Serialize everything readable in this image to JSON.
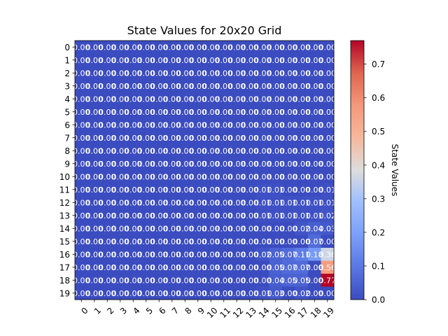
{
  "chart_data": {
    "type": "heatmap",
    "title": "State Values for 20x20 Grid",
    "colorbar_label": "State Values",
    "colormap": "coolwarm",
    "color_low": "#3b4cc0",
    "color_mid": "#dddddd",
    "color_high": "#b40426",
    "vmin": 0.0,
    "vmax": 0.77,
    "x_ticks": [
      "0",
      "1",
      "2",
      "3",
      "4",
      "5",
      "6",
      "7",
      "8",
      "9",
      "10",
      "11",
      "12",
      "13",
      "14",
      "15",
      "16",
      "17",
      "18",
      "19"
    ],
    "y_ticks": [
      "0",
      "1",
      "2",
      "3",
      "4",
      "5",
      "6",
      "7",
      "8",
      "9",
      "10",
      "11",
      "12",
      "13",
      "14",
      "15",
      "16",
      "17",
      "18",
      "19"
    ],
    "colorbar_ticks": [
      "0.0",
      "0.1",
      "0.2",
      "0.3",
      "0.4",
      "0.5",
      "0.6",
      "0.7"
    ],
    "colorbar_tick_values": [
      0.0,
      0.1,
      0.2,
      0.3,
      0.4,
      0.5,
      0.6,
      0.7
    ],
    "values": [
      [
        0,
        0,
        0,
        0,
        0,
        0,
        0,
        0,
        0,
        0,
        0,
        0,
        0,
        0,
        0,
        0,
        0,
        0,
        0,
        0
      ],
      [
        0,
        0,
        0,
        0,
        0,
        0,
        0,
        0,
        0,
        0,
        0,
        0,
        0,
        0,
        0,
        0,
        0,
        0,
        0,
        0
      ],
      [
        0,
        0,
        0,
        0,
        0,
        0,
        0,
        0,
        0,
        0,
        0,
        0,
        0,
        0,
        0,
        0,
        0,
        0,
        0,
        0
      ],
      [
        0,
        0,
        0,
        0,
        0,
        0,
        0,
        0,
        0,
        0,
        0,
        0,
        0,
        0,
        0,
        0,
        0,
        0,
        0,
        0
      ],
      [
        0,
        0,
        0,
        0,
        0,
        0,
        0,
        0,
        0,
        0,
        0,
        0,
        0,
        0,
        0,
        0,
        0,
        0,
        0,
        0
      ],
      [
        0,
        0,
        0,
        0,
        0,
        0,
        0,
        0,
        0,
        0,
        0,
        0,
        0,
        0,
        0,
        0,
        0,
        0,
        0,
        0
      ],
      [
        0,
        0,
        0,
        0,
        0,
        0,
        0,
        0,
        0,
        0,
        0,
        0,
        0,
        0,
        0,
        0,
        0,
        0,
        0,
        0
      ],
      [
        0,
        0,
        0,
        0,
        0,
        0,
        0,
        0,
        0,
        0,
        0,
        0,
        0,
        0,
        0,
        0,
        0,
        0,
        0,
        0
      ],
      [
        0,
        0,
        0,
        0,
        0,
        0,
        0,
        0,
        0,
        0,
        0,
        0,
        0,
        0,
        0,
        0,
        0,
        0,
        0,
        0
      ],
      [
        0,
        0,
        0,
        0,
        0,
        0,
        0,
        0,
        0,
        0,
        0,
        0,
        0,
        0,
        0,
        0,
        0,
        0,
        0,
        0
      ],
      [
        0,
        0,
        0,
        0,
        0,
        0,
        0,
        0,
        0,
        0,
        0,
        0,
        0,
        0,
        0,
        0,
        0,
        0,
        0,
        0
      ],
      [
        0,
        0,
        0,
        0,
        0,
        0,
        0,
        0,
        0,
        0,
        0,
        0,
        0,
        0,
        0.01,
        0.01,
        0,
        0,
        0,
        0.01
      ],
      [
        0,
        0,
        0,
        0,
        0,
        0,
        0,
        0,
        0,
        0,
        0,
        0,
        0,
        0,
        0.01,
        0.01,
        0.01,
        0.01,
        0.01,
        0.01
      ],
      [
        0,
        0,
        0,
        0,
        0,
        0,
        0,
        0,
        0,
        0,
        0,
        0,
        0,
        0,
        0.01,
        0.01,
        0.01,
        0.01,
        0.01,
        0.02
      ],
      [
        0,
        0,
        0,
        0,
        0,
        0,
        0,
        0,
        0,
        0,
        0,
        0,
        0,
        0,
        0,
        0,
        0,
        0.02,
        0.04,
        0.03
      ],
      [
        0,
        0,
        0,
        0,
        0,
        0,
        0,
        0,
        0,
        0,
        0,
        0,
        0,
        0,
        0,
        0,
        0,
        0,
        0.07,
        0
      ],
      [
        0,
        0,
        0,
        0,
        0,
        0,
        0,
        0,
        0,
        0,
        0,
        0,
        0,
        0,
        0.02,
        0.05,
        0.07,
        0.11,
        0.18,
        0.36
      ],
      [
        0,
        0,
        0,
        0,
        0,
        0,
        0,
        0,
        0,
        0,
        0,
        0,
        0,
        0,
        0,
        0.05,
        0.07,
        0.07,
        0,
        0.56
      ],
      [
        0,
        0,
        0,
        0,
        0,
        0,
        0,
        0,
        0,
        0,
        0,
        0,
        0,
        0,
        0,
        0.04,
        0.05,
        0.05,
        0,
        0.77
      ],
      [
        0,
        0,
        0,
        0,
        0,
        0,
        0,
        0,
        0,
        0,
        0,
        0,
        0,
        0,
        0.01,
        0.03,
        0,
        0.02,
        0,
        0
      ]
    ]
  }
}
